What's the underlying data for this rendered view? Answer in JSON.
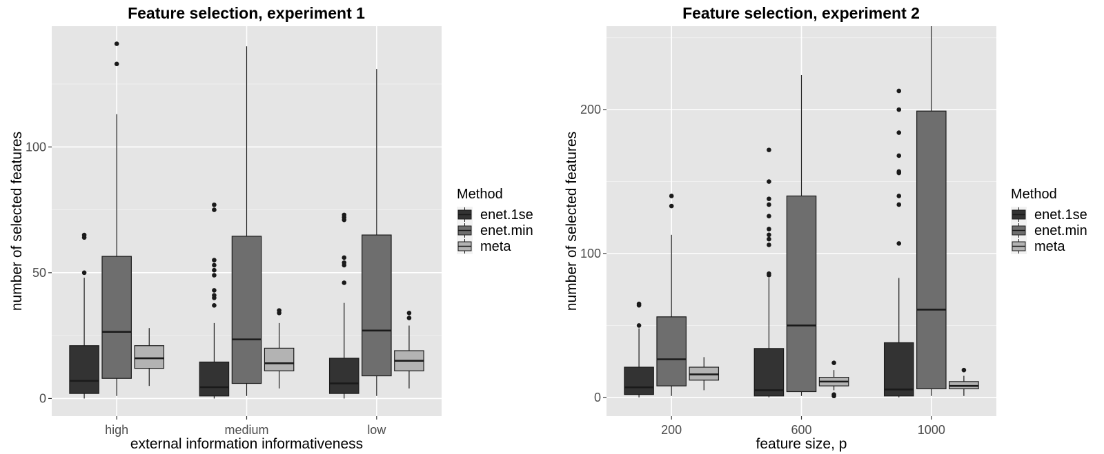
{
  "chart_data": [
    {
      "type": "box",
      "title": "Feature selection, experiment 1",
      "xlabel": "external information informativeness",
      "ylabel": "number of selected features",
      "categories": [
        "high",
        "medium",
        "low"
      ],
      "ylim": [
        -7,
        148
      ],
      "yticks": [
        0,
        50,
        100
      ],
      "grid": true,
      "legend_placement": "right",
      "legend_title": "Method",
      "series": [
        {
          "name": "enet.1se",
          "color": "#333333",
          "boxes": [
            {
              "category": "high",
              "whisker_low": 0,
              "q1": 2,
              "median": 7,
              "q3": 21,
              "whisker_high": 48,
              "outliers": [
                50,
                64,
                65
              ]
            },
            {
              "category": "medium",
              "whisker_low": 0,
              "q1": 1,
              "median": 4.5,
              "q3": 14.5,
              "whisker_high": 30,
              "outliers": [
                37,
                40,
                41,
                43,
                49,
                51,
                53,
                55,
                75,
                77
              ]
            },
            {
              "category": "low",
              "whisker_low": 0,
              "q1": 2,
              "median": 6,
              "q3": 16,
              "whisker_high": 38,
              "outliers": [
                46,
                53,
                54,
                56,
                71,
                72,
                73
              ]
            }
          ]
        },
        {
          "name": "enet.min",
          "color": "#6e6e6e",
          "boxes": [
            {
              "category": "high",
              "whisker_low": 1,
              "q1": 8,
              "median": 26.5,
              "q3": 56.5,
              "whisker_high": 113,
              "outliers": [
                133,
                141
              ]
            },
            {
              "category": "medium",
              "whisker_low": 1,
              "q1": 6,
              "median": 23.5,
              "q3": 64.5,
              "whisker_high": 140,
              "outliers": []
            },
            {
              "category": "low",
              "whisker_low": 1,
              "q1": 9,
              "median": 27,
              "q3": 65,
              "whisker_high": 131,
              "outliers": []
            }
          ]
        },
        {
          "name": "meta",
          "color": "#b3b3b3",
          "boxes": [
            {
              "category": "high",
              "whisker_low": 5,
              "q1": 12,
              "median": 16,
              "q3": 21,
              "whisker_high": 28,
              "outliers": []
            },
            {
              "category": "medium",
              "whisker_low": 4,
              "q1": 11,
              "median": 14,
              "q3": 20,
              "whisker_high": 30,
              "outliers": [
                34,
                35
              ]
            },
            {
              "category": "low",
              "whisker_low": 4,
              "q1": 11,
              "median": 15,
              "q3": 19,
              "whisker_high": 29,
              "outliers": [
                32,
                34
              ]
            }
          ]
        }
      ]
    },
    {
      "type": "box",
      "title": "Feature selection, experiment 2",
      "xlabel": "feature size, p",
      "ylabel": "number of selected features",
      "categories": [
        "200",
        "600",
        "1000"
      ],
      "ylim": [
        -13,
        258
      ],
      "yticks": [
        0,
        100,
        200
      ],
      "grid": true,
      "legend_placement": "right",
      "legend_title": "Method",
      "series": [
        {
          "name": "enet.1se",
          "color": "#333333",
          "boxes": [
            {
              "category": "200",
              "whisker_low": 0,
              "q1": 2,
              "median": 7,
              "q3": 21,
              "whisker_high": 48,
              "outliers": [
                50,
                64,
                65
              ]
            },
            {
              "category": "600",
              "whisker_low": 0,
              "q1": 1,
              "median": 5,
              "q3": 34,
              "whisker_high": 83,
              "outliers": [
                85,
                86,
                106,
                110,
                113,
                117,
                126,
                134,
                138,
                150,
                172
              ]
            },
            {
              "category": "1000",
              "whisker_low": 0,
              "q1": 1,
              "median": 5.5,
              "q3": 38,
              "whisker_high": 83,
              "outliers": [
                107,
                134,
                140,
                156,
                157,
                168,
                184,
                200,
                213
              ]
            }
          ]
        },
        {
          "name": "enet.min",
          "color": "#6e6e6e",
          "boxes": [
            {
              "category": "200",
              "whisker_low": 1,
              "q1": 8,
              "median": 26.5,
              "q3": 56,
              "whisker_high": 113,
              "outliers": [
                133,
                140
              ]
            },
            {
              "category": "600",
              "whisker_low": 1,
              "q1": 4,
              "median": 50,
              "q3": 140,
              "whisker_high": 224,
              "outliers": []
            },
            {
              "category": "1000",
              "whisker_low": 1,
              "q1": 6,
              "median": 61,
              "q3": 199,
              "whisker_high": 258,
              "outliers": []
            }
          ]
        },
        {
          "name": "meta",
          "color": "#b3b3b3",
          "boxes": [
            {
              "category": "200",
              "whisker_low": 5,
              "q1": 12,
              "median": 16,
              "q3": 21,
              "whisker_high": 28,
              "outliers": []
            },
            {
              "category": "600",
              "whisker_low": 5,
              "q1": 8,
              "median": 11,
              "q3": 14,
              "whisker_high": 19,
              "outliers": [
                24,
                2,
                1
              ]
            },
            {
              "category": "1000",
              "whisker_low": 1,
              "q1": 6,
              "median": 8,
              "q3": 11,
              "whisker_high": 15,
              "outliers": [
                19
              ]
            }
          ]
        }
      ]
    }
  ]
}
